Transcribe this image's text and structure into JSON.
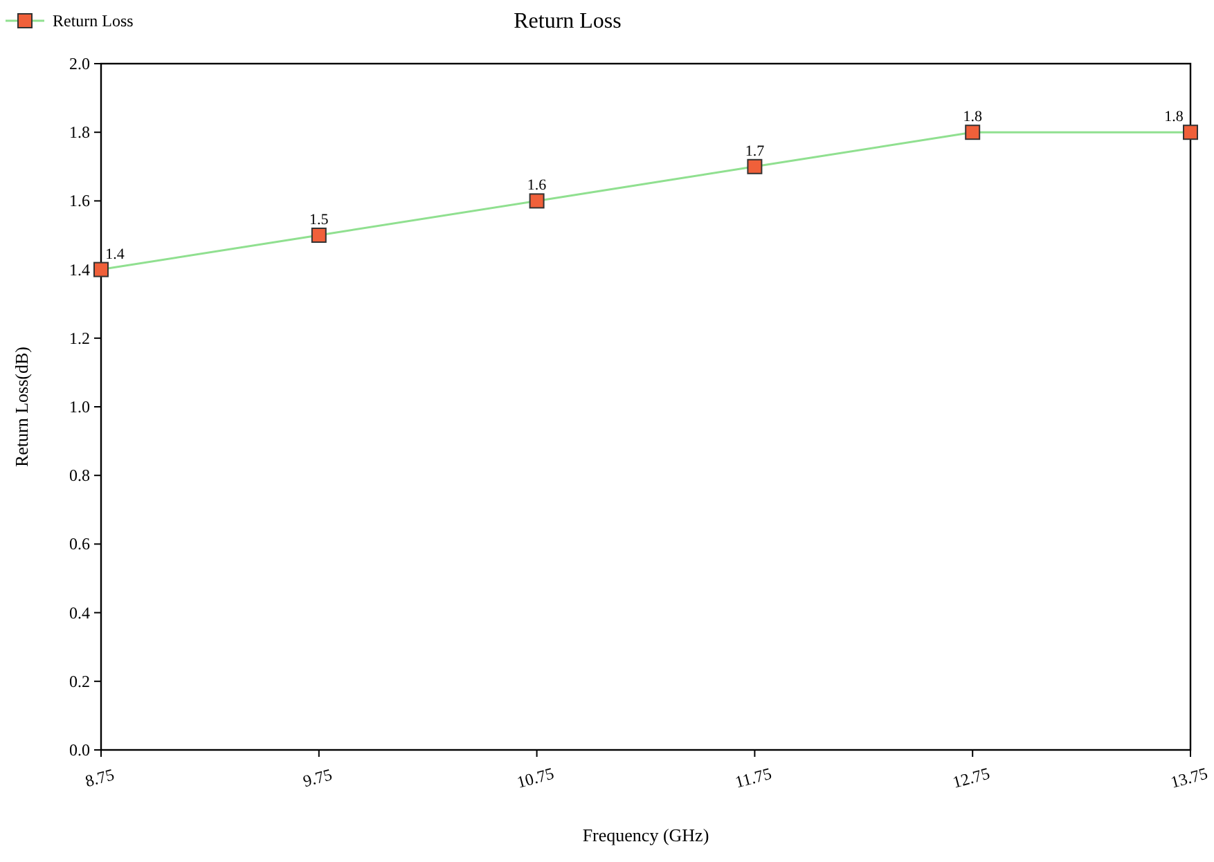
{
  "chart_data": {
    "type": "line",
    "title": "Return Loss",
    "xlabel": "Frequency (GHz)",
    "ylabel": "Return Loss(dB)",
    "x": [
      8.75,
      9.75,
      10.75,
      11.75,
      12.75,
      13.75
    ],
    "series": [
      {
        "name": "Return Loss",
        "color": "#90e090",
        "colors": [
          "#f0603a",
          "#f0603a",
          "#f0603a",
          "#f0603a",
          "#f0603a",
          "#f0603a"
        ],
        "values": [
          1.4,
          1.5,
          1.6,
          1.7,
          1.8,
          1.8
        ]
      }
    ],
    "xlim": [
      8.75,
      13.75
    ],
    "xticks": [
      8.75,
      9.75,
      10.75,
      11.75,
      12.75,
      13.75
    ],
    "ylim": [
      0,
      2
    ],
    "yticks": [
      {
        "value": 0,
        "label": "0.0"
      },
      {
        "value": 0.2,
        "label": "0.2"
      },
      {
        "value": 0.4,
        "label": "0.4"
      },
      {
        "value": 0.6,
        "label": "0.6"
      },
      {
        "value": 0.8,
        "label": "0.8"
      },
      {
        "value": 1,
        "label": "1.0"
      },
      {
        "value": 1.2,
        "label": "1.2"
      },
      {
        "value": 1.4,
        "label": "1.4"
      },
      {
        "value": 1.6,
        "label": "1.6"
      },
      {
        "value": 1.8,
        "label": "1.8"
      },
      {
        "value": 2,
        "label": "2.0"
      }
    ],
    "marker": "square",
    "data_labels": true,
    "legend": "top left",
    "grid": false
  }
}
